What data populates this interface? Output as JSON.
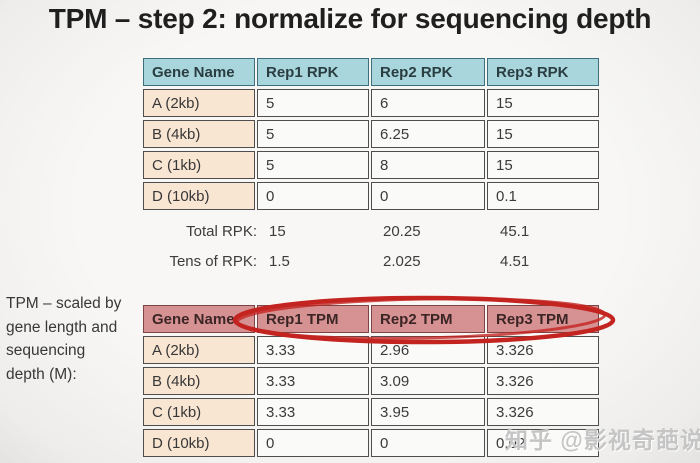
{
  "title": "TPM – step 2: normalize for sequencing depth",
  "side_note_text": "TPM – scaled by\ngene length and\nsequencing\ndepth (M):",
  "rpk_table": {
    "columns": [
      "Gene Name",
      "Rep1 RPK",
      "Rep2 RPK",
      "Rep3 RPK"
    ],
    "rows": [
      {
        "gene": "A (2kb)",
        "values": [
          "5",
          "6",
          "15"
        ]
      },
      {
        "gene": "B (4kb)",
        "values": [
          "5",
          "6.25",
          "15"
        ]
      },
      {
        "gene": "C (1kb)",
        "values": [
          "5",
          "8",
          "15"
        ]
      },
      {
        "gene": "D (10kb)",
        "values": [
          "0",
          "0",
          "0.1"
        ]
      }
    ]
  },
  "summary": {
    "rows": [
      {
        "label": "Total RPK:",
        "values": [
          "15",
          "20.25",
          "45.1"
        ]
      },
      {
        "label": "Tens of RPK:",
        "values": [
          "1.5",
          "2.025",
          "4.51"
        ]
      }
    ]
  },
  "tpm_table": {
    "columns": [
      "Gene Name",
      "Rep1 TPM",
      "Rep2 TPM",
      "Rep3 TPM"
    ],
    "rows": [
      {
        "gene": "A (2kb)",
        "values": [
          "3.33",
          "2.96",
          "3.326"
        ]
      },
      {
        "gene": "B (4kb)",
        "values": [
          "3.33",
          "3.09",
          "3.326"
        ]
      },
      {
        "gene": "C (1kb)",
        "values": [
          "3.33",
          "3.95",
          "3.326"
        ]
      },
      {
        "gene": "D (10kb)",
        "values": [
          "0",
          "0",
          "0.02"
        ]
      }
    ]
  },
  "watermark": "知乎 @影视奇葩说",
  "colors": {
    "rpk_header_bg": "#a9d6dd",
    "tpm_header_bg": "#d69292",
    "gene_cell_bg": "#f8e5d2",
    "circle_red": "#c32420",
    "watermark_gray": "#c5c5c5"
  }
}
